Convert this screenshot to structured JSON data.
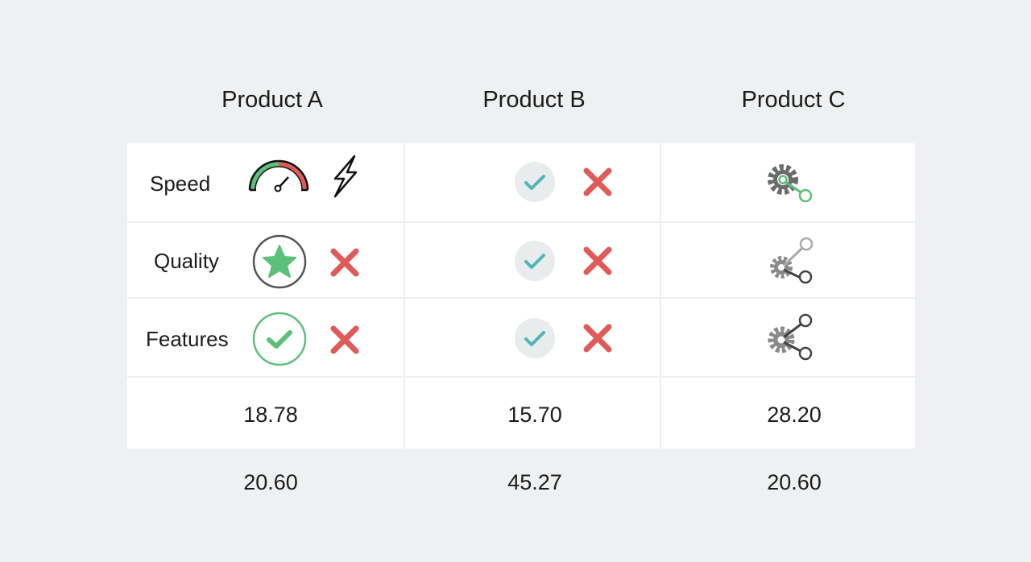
{
  "headers": [
    "Product A",
    "Product B",
    "Product C"
  ],
  "rows": [
    "Speed",
    "Quality",
    "Features"
  ],
  "values_row1": [
    "18.78",
    "15.70",
    "28.20"
  ],
  "values_row2": [
    "20.60",
    "45.27",
    "20.60"
  ],
  "colors": {
    "green": "#5cbf7a",
    "red": "#e05a5a",
    "teal": "#4fb6b8",
    "gray": "#6b6b6b",
    "background": "#eef0f1"
  },
  "icons": {
    "speed_a": [
      "speedometer-icon",
      "lightning-icon"
    ],
    "quality_a": [
      "star-circle-icon",
      "x-icon"
    ],
    "features_a": [
      "check-circle-icon",
      "x-icon"
    ],
    "product_b": [
      "check-badge-icon",
      "x-icon"
    ],
    "product_c": [
      "gear-share-icon"
    ]
  }
}
